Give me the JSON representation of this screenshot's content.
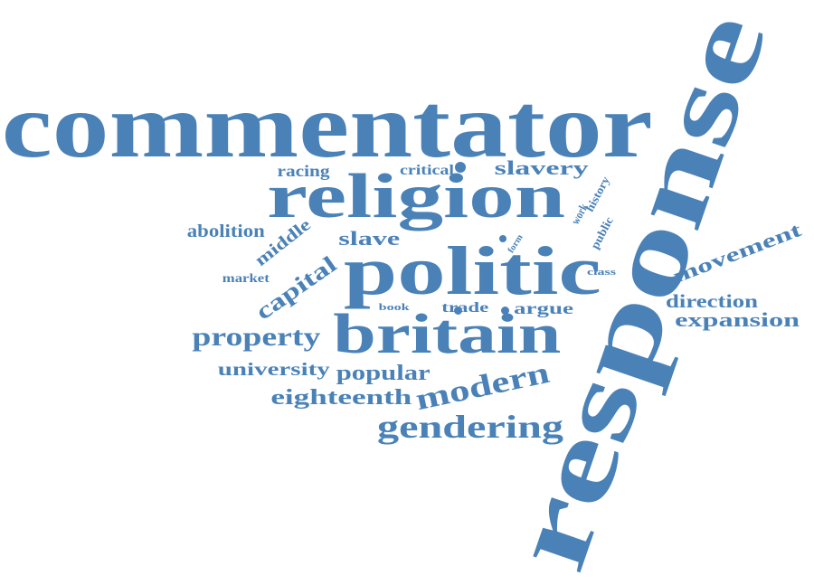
{
  "color": "#4a82b8",
  "words": [
    {
      "key": "commentator",
      "text": "commentator"
    },
    {
      "key": "response",
      "text": "response"
    },
    {
      "key": "religion",
      "text": "religion"
    },
    {
      "key": "politic",
      "text": "politic"
    },
    {
      "key": "britain",
      "text": "britain"
    },
    {
      "key": "racing",
      "text": "racing"
    },
    {
      "key": "critical",
      "text": "critical"
    },
    {
      "key": "slavery",
      "text": "slavery"
    },
    {
      "key": "work",
      "text": "work"
    },
    {
      "key": "history",
      "text": "history"
    },
    {
      "key": "public",
      "text": "public"
    },
    {
      "key": "form",
      "text": "form"
    },
    {
      "key": "abolition",
      "text": "abolition"
    },
    {
      "key": "middle",
      "text": "middle"
    },
    {
      "key": "slave",
      "text": "slave"
    },
    {
      "key": "market",
      "text": "market"
    },
    {
      "key": "capital",
      "text": "capital"
    },
    {
      "key": "class",
      "text": "class"
    },
    {
      "key": "movement",
      "text": "movement"
    },
    {
      "key": "direction",
      "text": "direction"
    },
    {
      "key": "expansion",
      "text": "expansion"
    },
    {
      "key": "book",
      "text": "book"
    },
    {
      "key": "trade",
      "text": "trade"
    },
    {
      "key": "argue",
      "text": "argue"
    },
    {
      "key": "property",
      "text": "property"
    },
    {
      "key": "university",
      "text": "university"
    },
    {
      "key": "popular",
      "text": "popular"
    },
    {
      "key": "modern",
      "text": "modern"
    },
    {
      "key": "eighteenth",
      "text": "eighteenth"
    },
    {
      "key": "gendering",
      "text": "gendering"
    }
  ]
}
